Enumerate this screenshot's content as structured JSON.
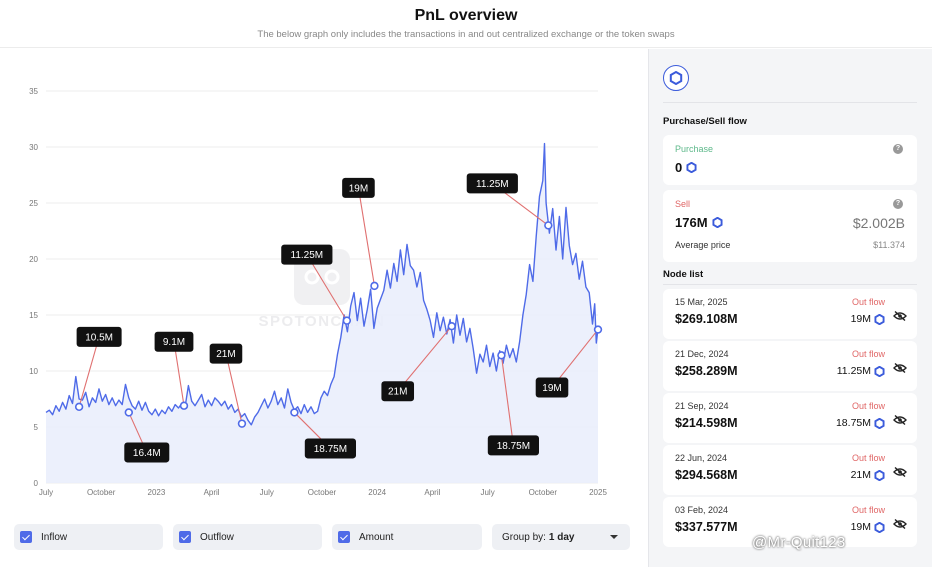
{
  "header": {
    "title": "PnL overview",
    "subtitle": "The below graph only includes the transactions in and out centralized exchange or the token swaps"
  },
  "chart_data": {
    "type": "area",
    "y_ticks": [
      "0",
      "5",
      "10",
      "15",
      "20",
      "25",
      "30",
      "35"
    ],
    "ylim": [
      0,
      35
    ],
    "x_ticks": [
      "July",
      "October",
      "2023",
      "April",
      "July",
      "October",
      "2024",
      "April",
      "July",
      "October",
      "2025"
    ],
    "xlim": [
      0,
      100
    ],
    "grid": true,
    "line_color": "#4f6be8",
    "fill_color": "#e9edfb",
    "series_points": [
      [
        0,
        6.3
      ],
      [
        0.6,
        6.5
      ],
      [
        1.2,
        6.1
      ],
      [
        1.8,
        6.9
      ],
      [
        2.4,
        6.4
      ],
      [
        3,
        7.2
      ],
      [
        3.6,
        6.6
      ],
      [
        4.2,
        7.8
      ],
      [
        4.8,
        7.1
      ],
      [
        5.4,
        9.5
      ],
      [
        6,
        7.5
      ],
      [
        6.6,
        7.4
      ],
      [
        7.2,
        8.1
      ],
      [
        7.8,
        6.8
      ],
      [
        8.4,
        7.6
      ],
      [
        9,
        7.2
      ],
      [
        9.6,
        8.4
      ],
      [
        10.2,
        7.3
      ],
      [
        10.8,
        7.9
      ],
      [
        11.4,
        7.0
      ],
      [
        12,
        7.6
      ],
      [
        12.6,
        6.9
      ],
      [
        13.2,
        7.4
      ],
      [
        13.8,
        7.0
      ],
      [
        14.4,
        8.8
      ],
      [
        15,
        7.6
      ],
      [
        15.6,
        6.9
      ],
      [
        16.2,
        6.6
      ],
      [
        16.8,
        7.3
      ],
      [
        17.4,
        6.5
      ],
      [
        18,
        7.2
      ],
      [
        18.6,
        6.4
      ],
      [
        19.2,
        6.1
      ],
      [
        19.8,
        6.6
      ],
      [
        20.4,
        6.0
      ],
      [
        21,
        6.5
      ],
      [
        21.6,
        6.2
      ],
      [
        22.2,
        6.8
      ],
      [
        22.8,
        6.4
      ],
      [
        23.4,
        7.0
      ],
      [
        24,
        6.7
      ],
      [
        24.6,
        7.1
      ],
      [
        25.2,
        6.8
      ],
      [
        25.8,
        8.7
      ],
      [
        26.4,
        7.3
      ],
      [
        27,
        6.9
      ],
      [
        27.6,
        7.4
      ],
      [
        28.2,
        7.9
      ],
      [
        28.8,
        6.8
      ],
      [
        29.4,
        7.4
      ],
      [
        30,
        6.9
      ],
      [
        30.6,
        7.6
      ],
      [
        31.2,
        7.3
      ],
      [
        31.8,
        6.9
      ],
      [
        32.4,
        7.3
      ],
      [
        33,
        6.6
      ],
      [
        33.6,
        7.0
      ],
      [
        34.2,
        6.3
      ],
      [
        34.8,
        6.6
      ],
      [
        35.4,
        5.9
      ],
      [
        36,
        6.2
      ],
      [
        36.6,
        5.6
      ],
      [
        37.2,
        5.2
      ],
      [
        37.8,
        5.9
      ],
      [
        38.4,
        6.3
      ],
      [
        39,
        6.9
      ],
      [
        39.6,
        7.5
      ],
      [
        40.2,
        6.7
      ],
      [
        40.8,
        7.3
      ],
      [
        41.4,
        8.2
      ],
      [
        42,
        7.0
      ],
      [
        42.6,
        7.6
      ],
      [
        43.2,
        6.7
      ],
      [
        43.8,
        8.4
      ],
      [
        44.4,
        7.2
      ],
      [
        45,
        6.5
      ],
      [
        45.6,
        6.8
      ],
      [
        46.2,
        6.2
      ],
      [
        46.8,
        7.0
      ],
      [
        47.4,
        6.3
      ],
      [
        48,
        6.8
      ],
      [
        48.6,
        6.2
      ],
      [
        49.2,
        6.4
      ],
      [
        49.8,
        7.6
      ],
      [
        50.4,
        8.2
      ],
      [
        51,
        7.8
      ],
      [
        51.6,
        8.8
      ],
      [
        52.2,
        9.5
      ],
      [
        52.8,
        11.5
      ],
      [
        53.4,
        13.0
      ],
      [
        54,
        15.0
      ],
      [
        54.6,
        13.5
      ],
      [
        55.2,
        15.8
      ],
      [
        55.8,
        17.0
      ],
      [
        56.4,
        14.5
      ],
      [
        57,
        16.5
      ],
      [
        57.6,
        14.0
      ],
      [
        58.2,
        15.5
      ],
      [
        58.8,
        17.3
      ],
      [
        59.4,
        13.8
      ],
      [
        60,
        15.6
      ],
      [
        60.6,
        16.4
      ],
      [
        61.2,
        17.2
      ],
      [
        61.8,
        19.0
      ],
      [
        62.4,
        17.4
      ],
      [
        63,
        19.6
      ],
      [
        63.6,
        18.0
      ],
      [
        64.2,
        20.8
      ],
      [
        64.8,
        18.6
      ],
      [
        65.4,
        21.3
      ],
      [
        66,
        19.4
      ],
      [
        66.6,
        19.0
      ],
      [
        67.2,
        17.5
      ],
      [
        67.8,
        18.8
      ],
      [
        68.4,
        16.3
      ],
      [
        69,
        15.5
      ],
      [
        69.6,
        14.5
      ],
      [
        70.2,
        13.0
      ],
      [
        70.8,
        15.2
      ],
      [
        71.4,
        13.6
      ],
      [
        72,
        14.8
      ],
      [
        72.6,
        13.3
      ],
      [
        73.2,
        14.6
      ],
      [
        73.8,
        12.5
      ],
      [
        74.4,
        15.0
      ],
      [
        75,
        13.2
      ],
      [
        75.6,
        14.7
      ],
      [
        76.2,
        12.6
      ],
      [
        76.8,
        13.8
      ],
      [
        77.4,
        12.0
      ],
      [
        78,
        9.8
      ],
      [
        78.6,
        11.5
      ],
      [
        79.2,
        10.8
      ],
      [
        79.8,
        12.3
      ],
      [
        80.4,
        10.4
      ],
      [
        81,
        11.6
      ],
      [
        81.6,
        10.0
      ],
      [
        82.2,
        11.8
      ],
      [
        82.8,
        10.7
      ],
      [
        83.4,
        12.3
      ],
      [
        84,
        11.2
      ],
      [
        84.6,
        12.0
      ],
      [
        85.2,
        10.8
      ],
      [
        85.8,
        12.6
      ],
      [
        86.4,
        15.0
      ],
      [
        87,
        16.8
      ],
      [
        87.6,
        19.5
      ],
      [
        88.2,
        18.0
      ],
      [
        88.8,
        22.0
      ],
      [
        89.4,
        25.6
      ],
      [
        90,
        27.0
      ],
      [
        90.3,
        30.3
      ],
      [
        90.6,
        25.0
      ],
      [
        91.2,
        22.3
      ],
      [
        91.8,
        24.5
      ],
      [
        92.4,
        20.8
      ],
      [
        93,
        23.8
      ],
      [
        93.6,
        20.0
      ],
      [
        94.2,
        24.6
      ],
      [
        94.8,
        21.2
      ],
      [
        95.4,
        19.5
      ],
      [
        96,
        20.5
      ],
      [
        96.6,
        18.2
      ],
      [
        97.2,
        19.8
      ],
      [
        97.8,
        17.5
      ],
      [
        98.4,
        17.0
      ],
      [
        99,
        14.2
      ],
      [
        99.4,
        16.0
      ],
      [
        99.7,
        12.5
      ],
      [
        100,
        13.8
      ]
    ],
    "annotations": [
      {
        "label": "10.5M",
        "x": 6.0,
        "y": 6.8
      },
      {
        "label": "16.4M",
        "x": 15.0,
        "y": 6.3
      },
      {
        "label": "9.1M",
        "x": 25.0,
        "y": 6.9
      },
      {
        "label": "21M",
        "x": 35.5,
        "y": 5.3
      },
      {
        "label": "18.75M",
        "x": 45.0,
        "y": 6.3
      },
      {
        "label": "11.25M",
        "x": 54.5,
        "y": 14.5
      },
      {
        "label": "19M",
        "x": 59.5,
        "y": 17.6
      },
      {
        "label": "21M",
        "x": 73.5,
        "y": 14.0
      },
      {
        "label": "18.75M",
        "x": 82.5,
        "y": 11.4
      },
      {
        "label": "11.25M",
        "x": 91.0,
        "y": 23.0
      },
      {
        "label": "19M",
        "x": 100.0,
        "y": 13.7
      }
    ],
    "watermark": "SPOTONCHAIN"
  },
  "controls": {
    "inflow_label": "Inflow",
    "outflow_label": "Outflow",
    "amount_label": "Amount",
    "group_by_label": "Group by:",
    "group_by_value": "1 day"
  },
  "sidebar": {
    "token_icon": "chainlink-hex-icon",
    "flow_title": "Purchase/Sell flow",
    "purchase": {
      "label": "Purchase",
      "amount": "0"
    },
    "sell": {
      "label": "Sell",
      "amount": "176M",
      "usd": "$2.002B"
    },
    "avg_price": {
      "label": "Average price",
      "value": "$11.374"
    },
    "node_list_title": "Node list",
    "nodes": [
      {
        "date": "15 Mar, 2025",
        "value": "$269.108M",
        "flow": "Out flow",
        "amount": "19M"
      },
      {
        "date": "21 Dec, 2024",
        "value": "$258.289M",
        "flow": "Out flow",
        "amount": "11.25M"
      },
      {
        "date": "21 Sep, 2024",
        "value": "$214.598M",
        "flow": "Out flow",
        "amount": "18.75M"
      },
      {
        "date": "22 Jun, 2024",
        "value": "$294.568M",
        "flow": "Out flow",
        "amount": "21M"
      },
      {
        "date": "03 Feb, 2024",
        "value": "$337.577M",
        "flow": "Out flow",
        "amount": "19M"
      }
    ]
  },
  "watermark_text": "@Mr-Quit123",
  "colors": {
    "accent": "#4f6be8",
    "token": "#3b5bdb",
    "out_flow": "#e06666",
    "purchase": "#5db88a"
  }
}
